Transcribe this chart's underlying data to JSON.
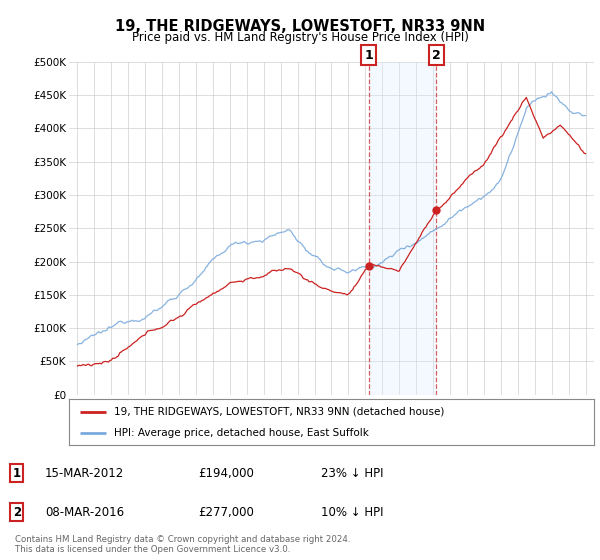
{
  "title": "19, THE RIDGEWAYS, LOWESTOFT, NR33 9NN",
  "subtitle": "Price paid vs. HM Land Registry's House Price Index (HPI)",
  "legend_line1": "19, THE RIDGEWAYS, LOWESTOFT, NR33 9NN (detached house)",
  "legend_line2": "HPI: Average price, detached house, East Suffolk",
  "footnote": "Contains HM Land Registry data © Crown copyright and database right 2024.\nThis data is licensed under the Open Government Licence v3.0.",
  "transaction1_date": "15-MAR-2012",
  "transaction1_price": "£194,000",
  "transaction1_hpi": "23% ↓ HPI",
  "transaction2_date": "08-MAR-2016",
  "transaction2_price": "£277,000",
  "transaction2_hpi": "10% ↓ HPI",
  "hpi_color": "#7aaadd",
  "price_color": "#cc2222",
  "highlight_color": "#ddeeff",
  "transaction1_x": 2012.2,
  "transaction2_x": 2016.2,
  "transaction1_y": 194000,
  "transaction2_y": 277000,
  "background_color": "#ffffff",
  "yticks": [
    0,
    50000,
    100000,
    150000,
    200000,
    250000,
    300000,
    350000,
    400000,
    450000,
    500000
  ],
  "ytick_labels": [
    "£0",
    "£50K",
    "£100K",
    "£150K",
    "£200K",
    "£250K",
    "£300K",
    "£350K",
    "£400K",
    "£450K",
    "£500K"
  ],
  "xlim_start": 1994.5,
  "xlim_end": 2025.5
}
